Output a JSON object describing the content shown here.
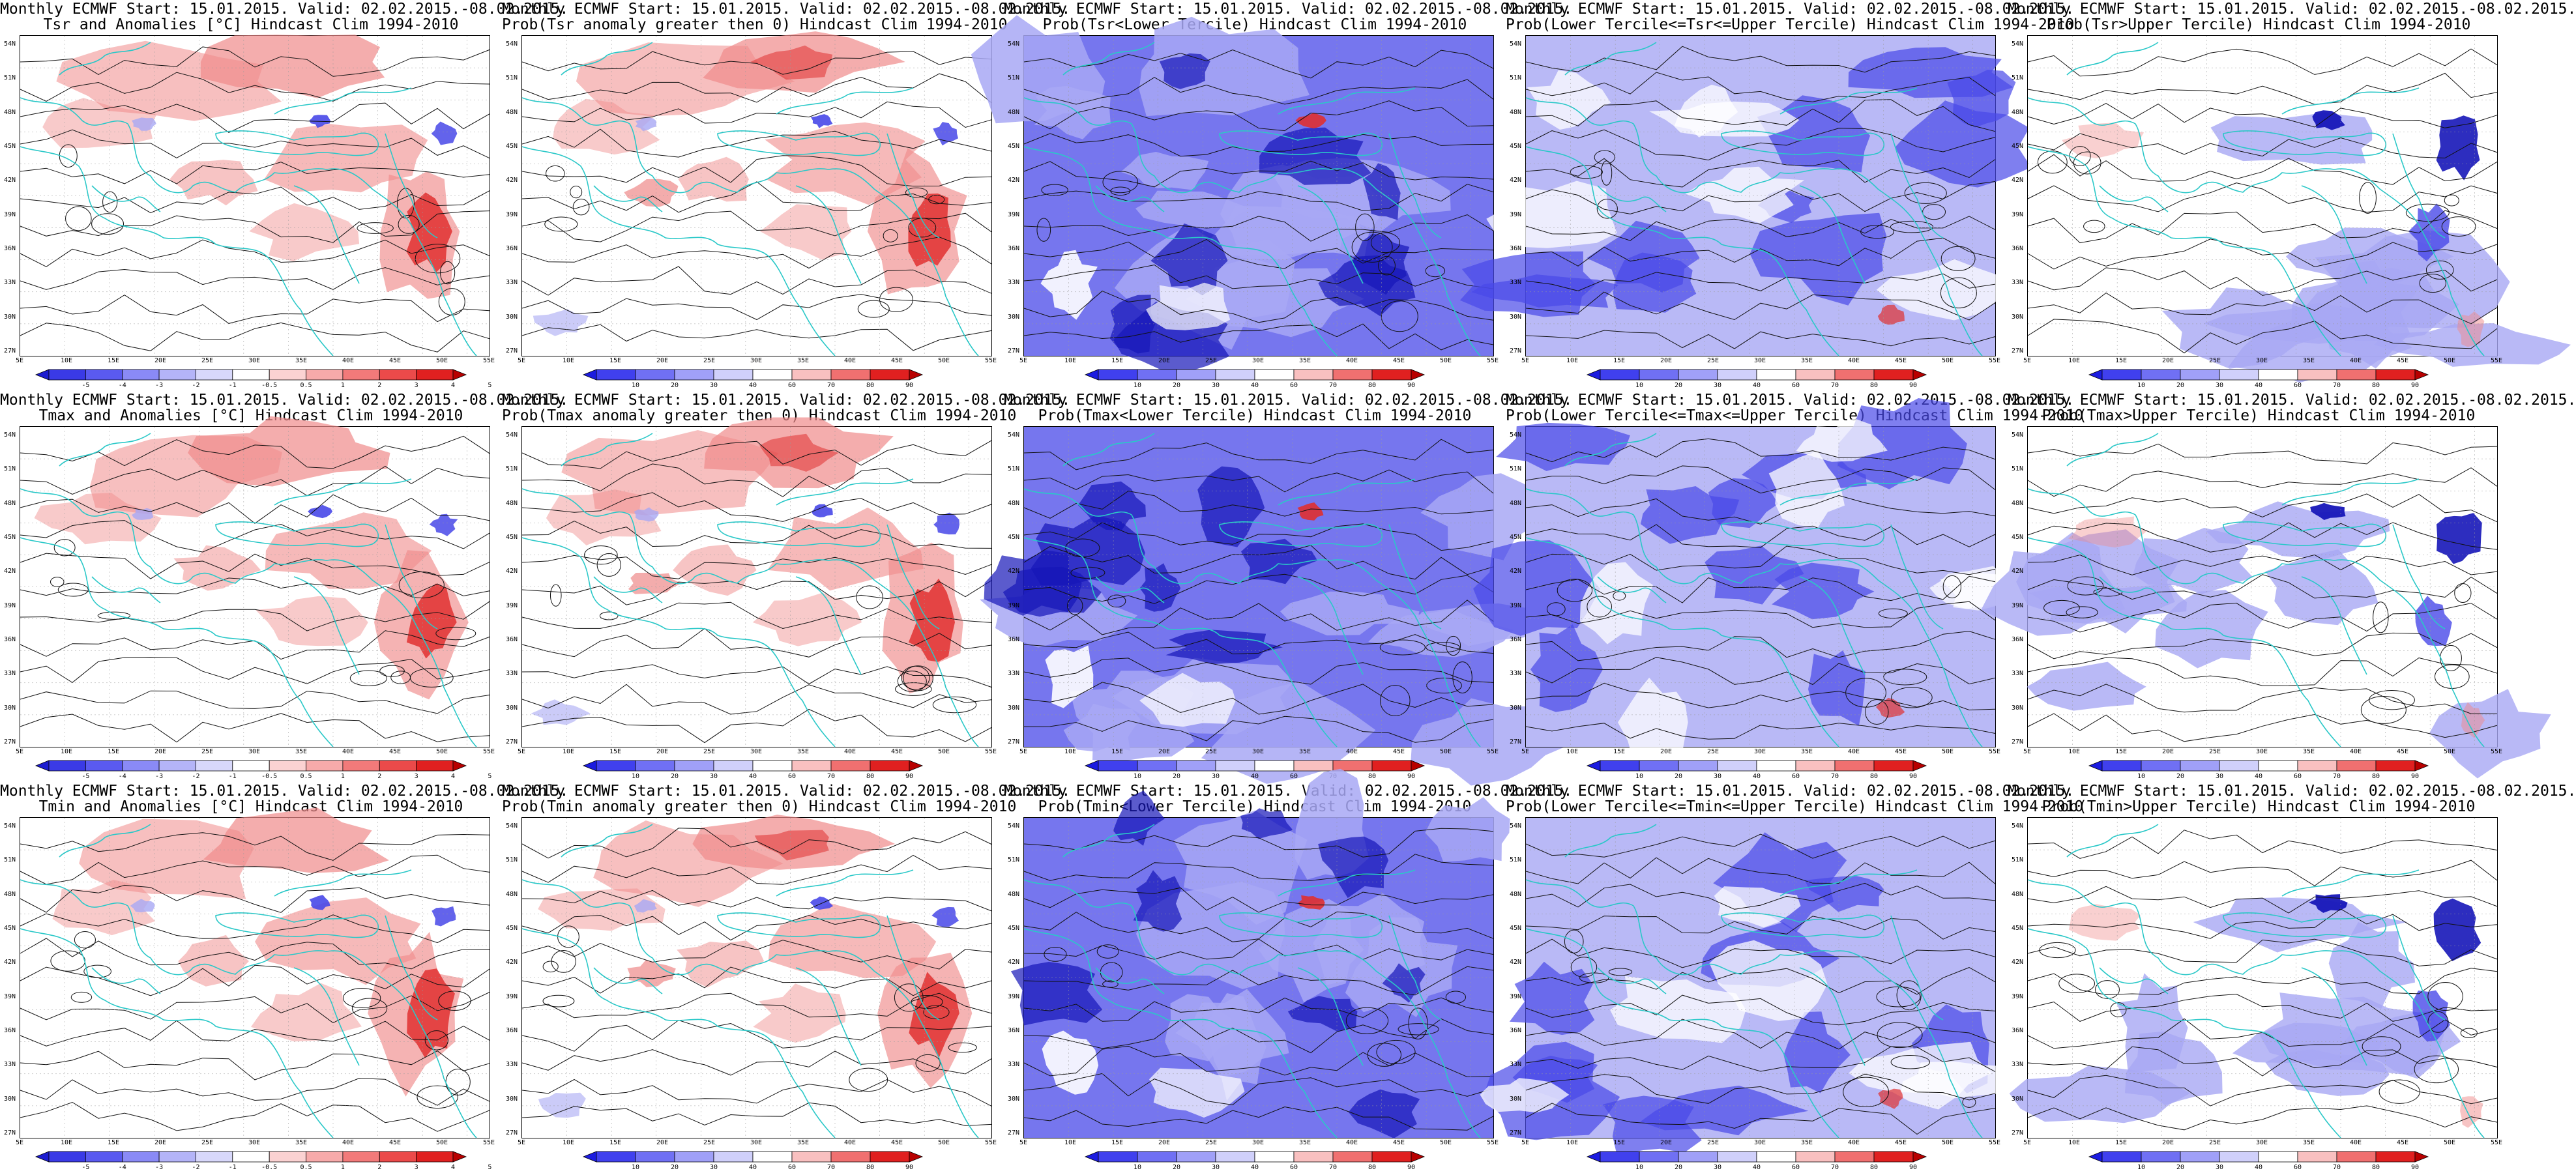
{
  "panels": [
    {
      "title1": "Monthly ECMWF Start: 15.01.2015. Valid: 02.02.2015.-08.02.2015.",
      "title2": "Tsr and Anomalies [°C] Hindcast Clim 1994-2010",
      "kind": "anom",
      "colorbar": "anom"
    },
    {
      "title1": "Monthly ECMWF Start: 15.01.2015. Valid: 02.02.2015.-08.02.2015.",
      "title2": "Prob(Tsr anomaly greater then 0) Hindcast Clim 1994-2010",
      "kind": "probpos",
      "colorbar": "prob"
    },
    {
      "title1": "Monthly ECMWF Start: 15.01.2015. Valid: 02.02.2015.-08.02.2015.",
      "title2": "Prob(Tsr<Lower Tercile) Hindcast Clim 1994-2010",
      "kind": "lower",
      "colorbar": "prob"
    },
    {
      "title1": "Monthly ECMWF Start: 15.01.2015. Valid: 02.02.2015.-08.02.2015.",
      "title2": "Prob(Lower Tercile<=Tsr<=Upper Tercile) Hindcast Clim 1994-2010",
      "kind": "middle",
      "colorbar": "prob"
    },
    {
      "title1": "Monthly ECMWF Start: 15.01.2015. Valid: 02.02.2015.-08.02.2015.",
      "title2": "Prob(Tsr>Upper Tercile) Hindcast Clim 1994-2010",
      "kind": "upper",
      "colorbar": "prob"
    },
    {
      "title1": "Monthly ECMWF Start: 15.01.2015. Valid: 02.02.2015.-08.02.2015.",
      "title2": "Tmax and Anomalies [°C] Hindcast Clim 1994-2010",
      "kind": "anom",
      "colorbar": "anom"
    },
    {
      "title1": "Monthly ECMWF Start: 15.01.2015. Valid: 02.02.2015.-08.02.2015.",
      "title2": "Prob(Tmax anomaly greater then 0) Hindcast Clim 1994-2010",
      "kind": "probpos",
      "colorbar": "prob"
    },
    {
      "title1": "Monthly ECMWF Start: 15.01.2015. Valid: 02.02.2015.-08.02.2015.",
      "title2": "Prob(Tmax<Lower Tercile) Hindcast Clim 1994-2010",
      "kind": "lower",
      "colorbar": "prob"
    },
    {
      "title1": "Monthly ECMWF Start: 15.01.2015. Valid: 02.02.2015.-08.02.2015.",
      "title2": "Prob(Lower Tercile<=Tmax<=Upper Tercile) Hindcast Clim 1994-2010",
      "kind": "middle",
      "colorbar": "prob"
    },
    {
      "title1": "Monthly ECMWF Start: 15.01.2015. Valid: 02.02.2015.-08.02.2015.",
      "title2": "Prob(Tmax>Upper Tercile) Hindcast Clim 1994-2010",
      "kind": "upper",
      "colorbar": "prob"
    },
    {
      "title1": "Monthly ECMWF Start: 15.01.2015. Valid: 02.02.2015.-08.02.2015.",
      "title2": "Tmin and Anomalies [°C] Hindcast Clim 1994-2010",
      "kind": "anom",
      "colorbar": "anom"
    },
    {
      "title1": "Monthly ECMWF Start: 15.01.2015. Valid: 02.02.2015.-08.02.2015.",
      "title2": "Prob(Tmin anomaly greater then 0) Hindcast Clim 1994-2010",
      "kind": "probpos",
      "colorbar": "prob"
    },
    {
      "title1": "Monthly ECMWF Start: 15.01.2015. Valid: 02.02.2015.-08.02.2015.",
      "title2": "Prob(Tmin<Lower Tercile) Hindcast Clim 1994-2010",
      "kind": "lower",
      "colorbar": "prob"
    },
    {
      "title1": "Monthly ECMWF Start: 15.01.2015. Valid: 02.02.2015.-08.02.2015.",
      "title2": "Prob(Lower Tercile<=Tmin<=Upper Tercile) Hindcast Clim 1994-2010",
      "kind": "middle",
      "colorbar": "prob"
    },
    {
      "title1": "Monthly ECMWF Start: 15.01.2015. Valid: 02.02.2015.-08.02.2015.",
      "title2": "Prob(Tmin>Upper Tercile) Hindcast Clim 1994-2010",
      "kind": "upper",
      "colorbar": "prob"
    }
  ],
  "lat_labels": [
    "54N",
    "51N",
    "48N",
    "45N",
    "42N",
    "39N",
    "36N",
    "33N",
    "30N",
    "27N"
  ],
  "lon_labels": [
    "5E",
    "10E",
    "15E",
    "20E",
    "25E",
    "30E",
    "35E",
    "40E",
    "45E",
    "50E",
    "55E"
  ],
  "colorbars": {
    "anom": {
      "labels": [
        "-5",
        "-4",
        "-3",
        "-2",
        "-1",
        "-0.5",
        "0.5",
        "1",
        "2",
        "3",
        "4",
        "5"
      ],
      "colors": [
        "#1c1cd0",
        "#3a3ae6",
        "#5a5af0",
        "#8a8af6",
        "#b4b4f8",
        "#d8d8fb",
        "#ffffff",
        "#fbd2d2",
        "#f7aaaa",
        "#f27a7a",
        "#eb4a4a",
        "#e02020",
        "#b80000"
      ]
    },
    "prob": {
      "labels": [
        "10",
        "20",
        "30",
        "40",
        "60",
        "70",
        "80",
        "90"
      ],
      "colors": [
        "#1c1ce0",
        "#4040ee",
        "#7070f4",
        "#a0a0f8",
        "#d0d0fb",
        "#ffffff",
        "#f9c0c0",
        "#f07070",
        "#e02020",
        "#b80000"
      ]
    }
  },
  "colors": {
    "coastline": "#2ac8c8",
    "contour": "#111111",
    "warm": "#f08a8a",
    "warm_strong": "#e03030",
    "cool": "#4848e8",
    "cool_strong": "#1616b8",
    "cool_light": "#a8a8f4"
  }
}
